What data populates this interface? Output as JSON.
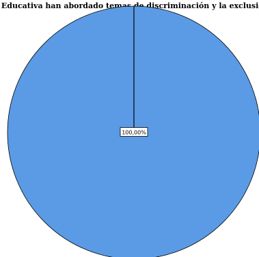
{
  "chart_data": {
    "type": "pie",
    "title": "udad Educativa han abordado temas de discriminación y la exclusión po",
    "slices": [
      {
        "value": 100.0,
        "label": "100,00%",
        "color": "#5b9be6"
      }
    ]
  }
}
